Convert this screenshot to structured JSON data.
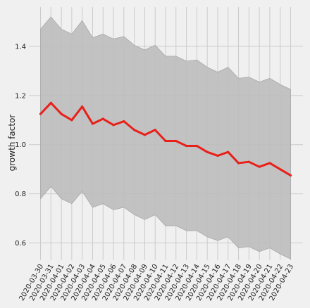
{
  "colors": {
    "background": "#f0f0f0",
    "grid": "#cbcbcb",
    "band_fill": "#bdbdbd",
    "band_edge": "#a8a8a8",
    "line": "#e8201a",
    "text": "#222222"
  },
  "chart_data": {
    "type": "line",
    "title": "",
    "xlabel": "",
    "ylabel": "growth factor",
    "ylim": [
      0.53,
      1.56
    ],
    "yticks": [
      0.6,
      0.8,
      1.0,
      1.2,
      1.4
    ],
    "ytick_labels": [
      "0.6",
      "0.8",
      "1.0",
      "1.2",
      "1.4"
    ],
    "grid": true,
    "x": [
      "2020-03-30",
      "2020-03-31",
      "2020-04-01",
      "2020-04-02",
      "2020-04-03",
      "2020-04-04",
      "2020-04-05",
      "2020-04-06",
      "2020-04-07",
      "2020-04-08",
      "2020-04-09",
      "2020-04-10",
      "2020-04-11",
      "2020-04-12",
      "2020-04-13",
      "2020-04-14",
      "2020-04-15",
      "2020-04-16",
      "2020-04-17",
      "2020-04-18",
      "2020-04-19",
      "2020-04-20",
      "2020-04-21",
      "2020-04-22",
      "2020-04-23"
    ],
    "series": [
      {
        "kind": "line",
        "values": [
          1.125,
          1.17,
          1.125,
          1.1,
          1.155,
          1.085,
          1.105,
          1.08,
          1.095,
          1.06,
          1.04,
          1.06,
          1.015,
          1.015,
          0.995,
          0.995,
          0.97,
          0.955,
          0.97,
          0.925,
          0.93,
          0.91,
          0.925,
          0.9,
          0.875
        ]
      },
      {
        "kind": "band",
        "upper": [
          1.47,
          1.52,
          1.47,
          1.45,
          1.505,
          1.435,
          1.45,
          1.43,
          1.44,
          1.405,
          1.385,
          1.405,
          1.36,
          1.36,
          1.34,
          1.345,
          1.315,
          1.295,
          1.315,
          1.27,
          1.275,
          1.255,
          1.27,
          1.245,
          1.225
        ],
        "lower": [
          0.78,
          0.83,
          0.78,
          0.76,
          0.81,
          0.745,
          0.76,
          0.735,
          0.745,
          0.715,
          0.695,
          0.715,
          0.67,
          0.67,
          0.65,
          0.65,
          0.625,
          0.61,
          0.625,
          0.58,
          0.585,
          0.565,
          0.58,
          0.555,
          0.535
        ]
      }
    ]
  }
}
